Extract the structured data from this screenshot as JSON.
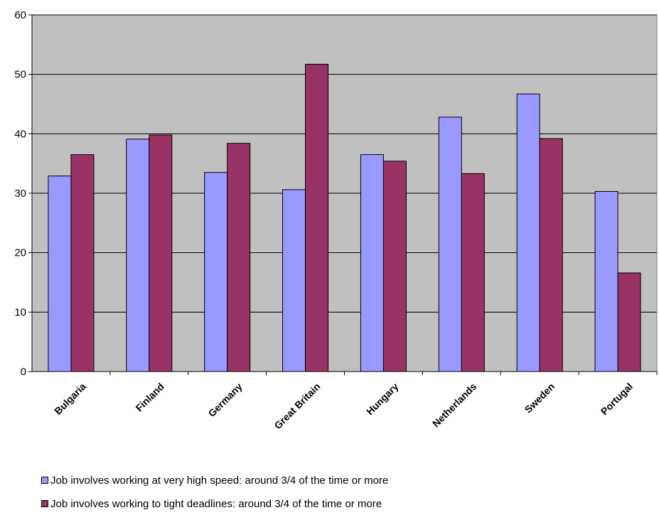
{
  "chart_data": {
    "type": "bar",
    "title": "",
    "xlabel": "",
    "ylabel": "",
    "ylim": [
      0,
      60
    ],
    "yticks": [
      0,
      10,
      20,
      30,
      40,
      50,
      60
    ],
    "grid": true,
    "legend_position": "bottom",
    "plot_background": "#c0c0c0",
    "categories": [
      "Bulgaria",
      "Finland",
      "Germany",
      "Great Britain",
      "Hungary",
      "Netherlands",
      "Sweden",
      "Portugal"
    ],
    "series": [
      {
        "name": "Job involves working at very high speed: around 3/4 of the time or more",
        "color": "#9999ff",
        "values": [
          32.9,
          39.1,
          33.5,
          30.6,
          36.5,
          42.8,
          46.7,
          30.3
        ]
      },
      {
        "name": "Job involves working to tight deadlines: around 3/4 of the time or more",
        "color": "#993366",
        "values": [
          36.5,
          39.8,
          38.4,
          51.7,
          35.4,
          33.3,
          39.2,
          16.6
        ]
      }
    ]
  }
}
